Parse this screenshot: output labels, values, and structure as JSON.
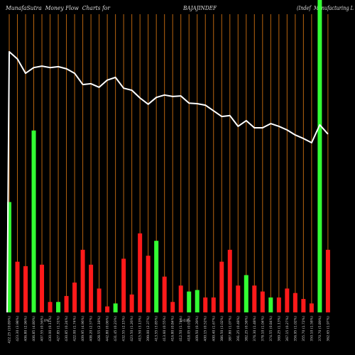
{
  "colors": {
    "background": "#000000",
    "grid": "#b8640f",
    "up": "#33ff33",
    "down": "#ff1a1a",
    "line": "#ffffff",
    "text": "#dddddd"
  },
  "chart_data": {
    "type": "bar",
    "title": "MunafaSutra  Money Flow  Charts for",
    "symbol": "BAJAJINDEF",
    "company": "(Indef  Manufacturing L",
    "xlabel": "",
    "ylabel": "",
    "ylim": [
      0,
      100
    ],
    "grid": "vertical",
    "legend": "none",
    "categories": [
      "422.25 (10.89%)",
      "423.30 (3.98%)",
      "406.80 (2.96%)",
      "406.85 (4.80%)",
      "407.55 (0.56%)",
      "430.00 (0.11%)",
      "427.85 (1.31%)",
      "430.85 (0.24%)",
      "422.00 (1.74%)",
      "409.95 (4.96%)",
      "408.20 (2.57%)",
      "428.55 (2.18%)",
      "442.80 (0.06%)",
      "431.45 (0.23%)",
      "432.55 (2.15%)",
      "423.50 (1.26%)",
      "415.50 (3.13%)",
      "399.00 (2.37%)",
      "413.55 (3.85%)",
      "413.60 (0.55%)",
      "416.80 (0.84%)",
      "412.50 (1.74%)",
      "418.05 (0.07%)",
      "409.50 (0.39%)",
      "400.15 (0.52%)",
      "400.40 (1.67%)",
      "386.50 (3.02%)",
      "387.80 (1.07%)",
      "391.25 (0.48%)",
      "382.25 (0.58%)",
      "376.30 (1.48%)",
      "378.10 (1.04%)",
      "374.55 (0.84%)",
      "369.25 (1.13%)",
      "367.15 (0.27%)",
      "356.95 (1.02%)",
      "355.70 (1.72%)",
      "350.10 (1.58%)",
      "370.70 (5.89%)",
      "362.65 (1.97%)"
    ],
    "series": [
      {
        "type": "bar",
        "values": [
          37,
          17,
          15.5,
          61,
          16,
          3.5,
          3.5,
          5.5,
          10,
          21,
          16,
          8,
          2,
          3,
          18,
          6,
          26.5,
          19,
          24,
          12,
          3.5,
          9,
          7,
          7.5,
          5,
          5,
          17,
          21,
          9,
          12.5,
          9,
          7,
          5,
          5,
          8,
          6.5,
          4.5,
          3,
          105,
          21
        ],
        "direction": [
          "up",
          "down",
          "down",
          "up",
          "down",
          "down",
          "up",
          "down",
          "down",
          "down",
          "down",
          "down",
          "down",
          "up",
          "down",
          "down",
          "down",
          "down",
          "up",
          "down",
          "down",
          "down",
          "up",
          "up",
          "down",
          "down",
          "down",
          "down",
          "down",
          "up",
          "down",
          "down",
          "up",
          "down",
          "down",
          "down",
          "down",
          "down",
          "up",
          "down"
        ]
      },
      {
        "type": "line",
        "values": [
          87.4,
          85.0,
          80.2,
          82.1,
          82.6,
          82.1,
          82.4,
          81.7,
          80.2,
          76.4,
          76.7,
          75.5,
          77.9,
          78.8,
          75.2,
          74.5,
          71.9,
          69.8,
          72.1,
          72.9,
          72.4,
          72.6,
          70.2,
          70.0,
          69.5,
          67.6,
          65.7,
          66.0,
          62.4,
          64.3,
          61.9,
          61.9,
          63.3,
          62.4,
          61.2,
          59.5,
          58.3,
          56.9,
          62.9,
          59.8
        ]
      }
    ],
    "annotations": [
      {
        "text": "0%",
        "category_index": 5
      },
      {
        "text": "0.03%",
        "category_index": 22
      }
    ]
  }
}
